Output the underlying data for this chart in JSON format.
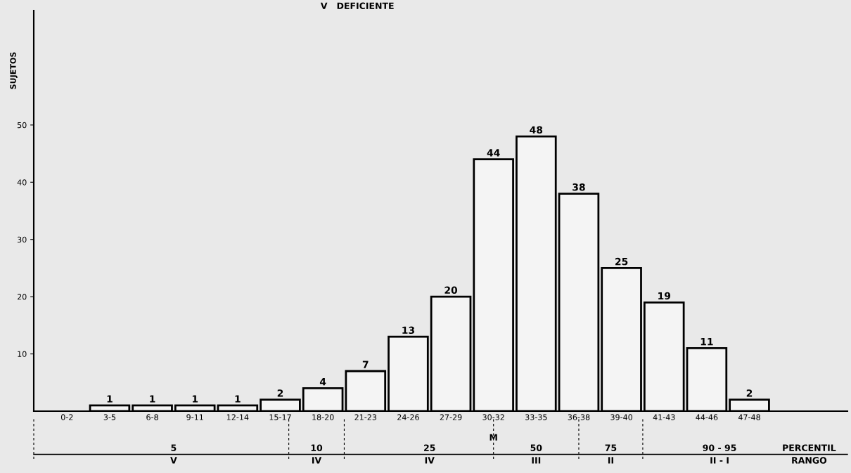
{
  "chart_data": {
    "type": "bar",
    "title": "V   DEFICIENTE",
    "ylabel": "SUJETOS",
    "categories": [
      "0-2",
      "3-5",
      "6-8",
      "9-11",
      "12-14",
      "15-17",
      "18-20",
      "21-23",
      "24-26",
      "27-29",
      "30-32",
      "33-35",
      "36-38",
      "39-40",
      "41-43",
      "44-46",
      "47-48"
    ],
    "values": [
      0,
      1,
      1,
      1,
      1,
      2,
      4,
      7,
      13,
      20,
      44,
      48,
      38,
      25,
      19,
      11,
      2
    ],
    "value_labels": [
      null,
      "1",
      "1",
      "1",
      "1",
      "2",
      "4",
      "7",
      "13",
      "20",
      "44",
      "48",
      "38",
      "25",
      "19",
      "11",
      "2"
    ],
    "color": "#f4f4f4",
    "ylim": [
      0,
      70
    ],
    "yticks": [
      10,
      20,
      30,
      40,
      50
    ],
    "grid": false,
    "legend": false,
    "annotations": [
      "5",
      "V",
      "10",
      "IV",
      "25",
      "IV",
      "M",
      "50",
      "III",
      "75",
      "II",
      "90 - 95",
      "II - I",
      "PERCENTIL",
      "RANGO"
    ]
  }
}
